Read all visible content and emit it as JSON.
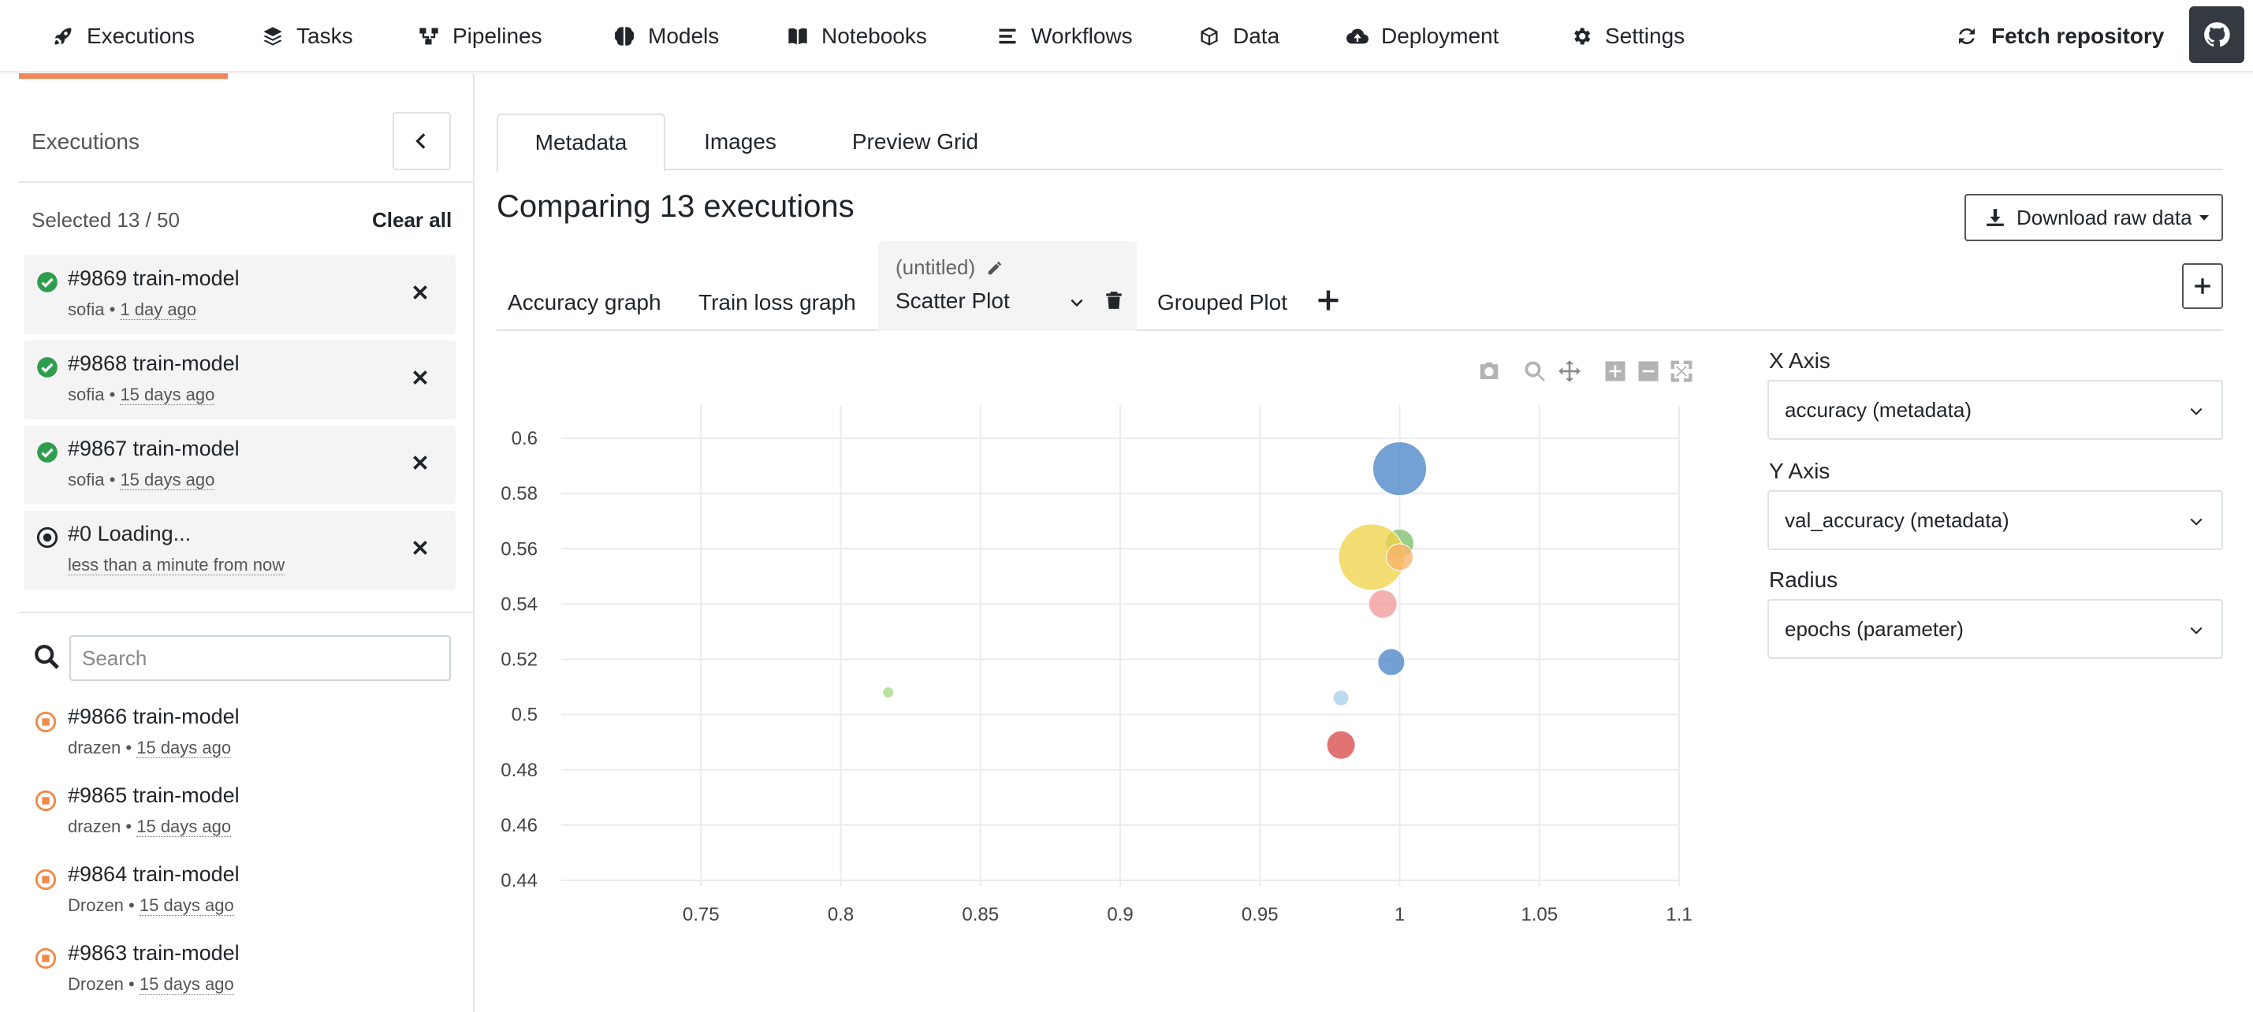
{
  "nav": {
    "items": [
      {
        "label": "Executions",
        "icon": "rocket-icon"
      },
      {
        "label": "Tasks",
        "icon": "layers-icon"
      },
      {
        "label": "Pipelines",
        "icon": "pipeline-icon"
      },
      {
        "label": "Models",
        "icon": "brain-icon"
      },
      {
        "label": "Notebooks",
        "icon": "book-icon"
      },
      {
        "label": "Workflows",
        "icon": "list-icon"
      },
      {
        "label": "Data",
        "icon": "cube-icon"
      },
      {
        "label": "Deployment",
        "icon": "cloud-upload-icon"
      },
      {
        "label": "Settings",
        "icon": "gear-icon"
      }
    ],
    "active": "Executions",
    "fetch_label": "Fetch repository",
    "accent": "#f0875a"
  },
  "sidebar": {
    "title": "Executions",
    "selected_text": "Selected 13 / 50",
    "clear_all": "Clear all",
    "selected": [
      {
        "number": "#9869",
        "name": "train-model",
        "user": "sofia",
        "time": "1 day ago",
        "status": "completed"
      },
      {
        "number": "#9868",
        "name": "train-model",
        "user": "sofia",
        "time": "15 days ago",
        "status": "completed"
      },
      {
        "number": "#9867",
        "name": "train-model",
        "user": "sofia",
        "time": "15 days ago",
        "status": "completed"
      },
      {
        "number": "#0",
        "name": "Loading...",
        "user": "",
        "time": "less than a minute from now",
        "status": "loading"
      }
    ],
    "search_placeholder": "Search",
    "list": [
      {
        "number": "#9866",
        "name": "train-model",
        "user": "drazen",
        "time": "15 days ago",
        "status": "stopped"
      },
      {
        "number": "#9865",
        "name": "train-model",
        "user": "drazen",
        "time": "15 days ago",
        "status": "stopped"
      },
      {
        "number": "#9864",
        "name": "train-model",
        "user": "Drozen",
        "time": "15 days ago",
        "status": "stopped"
      },
      {
        "number": "#9863",
        "name": "train-model",
        "user": "Drozen",
        "time": "15 days ago",
        "status": "stopped"
      }
    ],
    "separator": "•"
  },
  "main": {
    "tabs": [
      "Metadata",
      "Images",
      "Preview Grid"
    ],
    "active_tab": "Metadata",
    "title": "Comparing 13 executions",
    "download_label": "Download raw data",
    "plot_tabs": {
      "accuracy": "Accuracy graph",
      "train_loss": "Train loss graph",
      "active_name": "(untitled)",
      "active_type": "Scatter Plot",
      "grouped": "Grouped Plot"
    }
  },
  "controls": {
    "x_axis_label": "X Axis",
    "x_axis_value": "accuracy (metadata)",
    "y_axis_label": "Y Axis",
    "y_axis_value": "val_accuracy (metadata)",
    "radius_label": "Radius",
    "radius_value": "epochs (parameter)"
  },
  "chart_data": {
    "type": "scatter",
    "title": "",
    "xlabel": "",
    "ylabel": "",
    "xlim": [
      0.7,
      1.1
    ],
    "ylim": [
      0.438,
      0.612
    ],
    "x_ticks": [
      0.75,
      0.8,
      0.85,
      0.9,
      0.95,
      1,
      1.05,
      1.1
    ],
    "y_ticks": [
      0.44,
      0.46,
      0.48,
      0.5,
      0.52,
      0.54,
      0.56,
      0.58,
      0.6
    ],
    "x_tick_labels": [
      "0.75",
      "0.8",
      "0.85",
      "0.9",
      "0.95",
      "1",
      "1.05",
      "1.1"
    ],
    "y_tick_labels": [
      "0.44",
      "0.46",
      "0.48",
      "0.5",
      "0.52",
      "0.54",
      "0.56",
      "0.58",
      "0.6"
    ],
    "grid": true,
    "points": [
      {
        "x": 1.0,
        "y": 0.589,
        "size": 34,
        "color": "#4c86c6"
      },
      {
        "x": 1.0,
        "y": 0.562,
        "size": 18,
        "color": "#7fbf6a"
      },
      {
        "x": 0.99,
        "y": 0.557,
        "size": 42,
        "color": "#f1d44b"
      },
      {
        "x": 1.0,
        "y": 0.557,
        "size": 17,
        "color": "#f7b36c"
      },
      {
        "x": 0.994,
        "y": 0.54,
        "size": 18,
        "color": "#f19b9b"
      },
      {
        "x": 0.997,
        "y": 0.519,
        "size": 17,
        "color": "#4c86c6"
      },
      {
        "x": 0.979,
        "y": 0.506,
        "size": 10,
        "color": "#a9cfea"
      },
      {
        "x": 0.979,
        "y": 0.489,
        "size": 18,
        "color": "#d94c4c"
      },
      {
        "x": 0.817,
        "y": 0.508,
        "size": 7,
        "color": "#a8d98a"
      }
    ]
  }
}
